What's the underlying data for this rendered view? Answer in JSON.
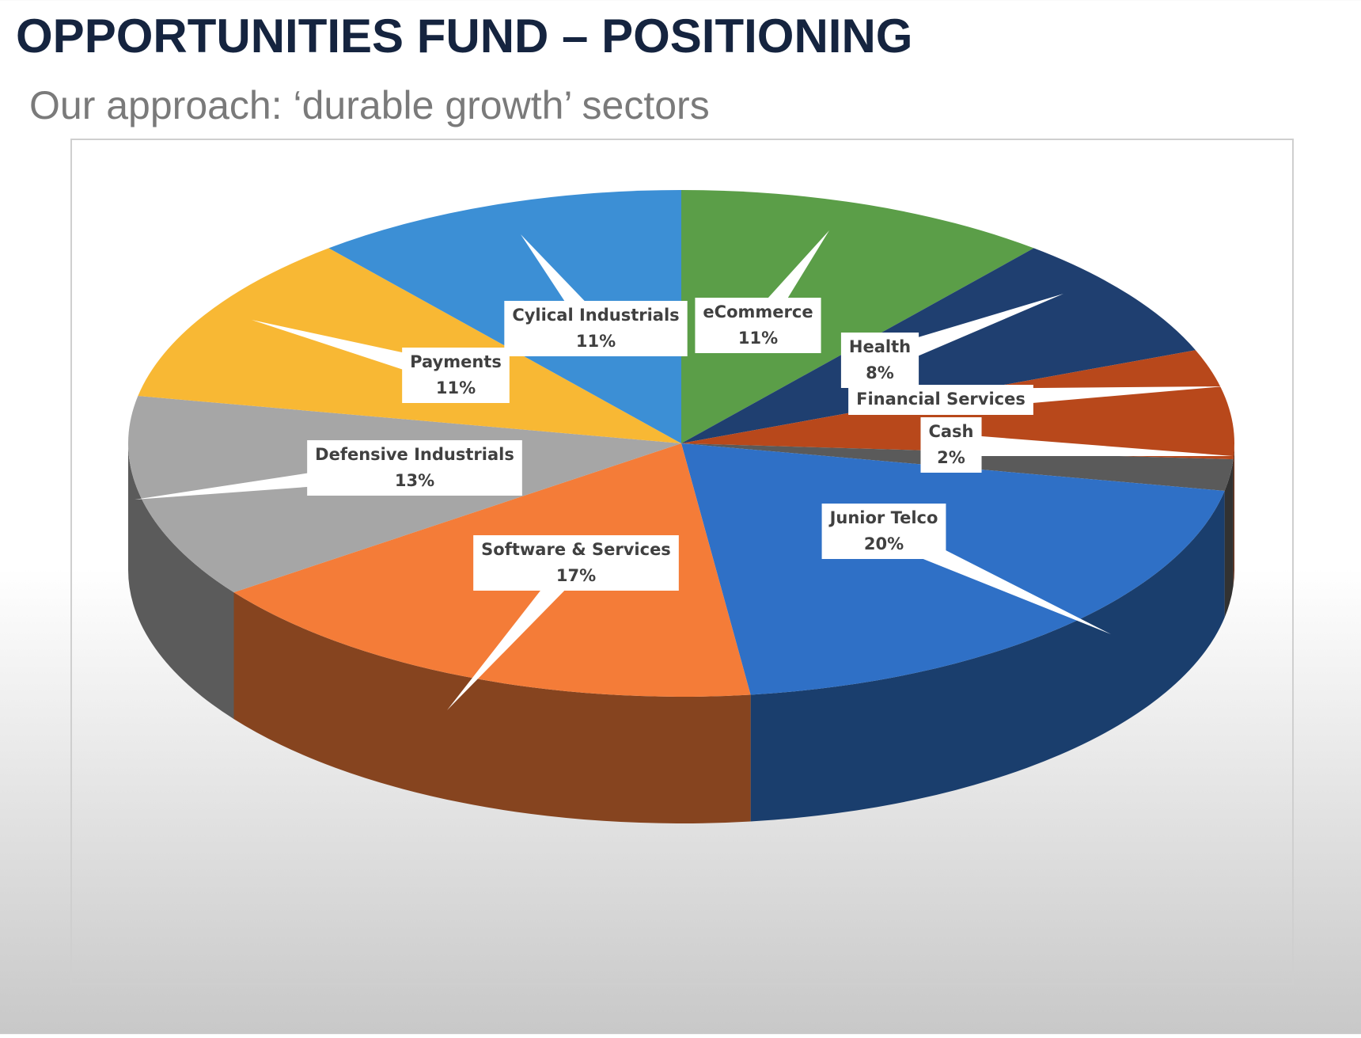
{
  "chart_data": {
    "type": "pie",
    "title": "OPPORTUNITIES FUND – POSITIONING",
    "subtitle": "Our approach: ‘durable growth’ sectors",
    "categories": [
      "eCommerce",
      "Health",
      "Financial Services",
      "Cash",
      "Junior Telco",
      "Software & Services",
      "Defensive Industrials",
      "Payments",
      "Cylical Industrials"
    ],
    "values": [
      11,
      8,
      7,
      2,
      20,
      17,
      13,
      11,
      11
    ],
    "value_labels": [
      "11%",
      "8%",
      null,
      "2%",
      "20%",
      "17%",
      "13%",
      "11%",
      "11%"
    ],
    "colors": [
      "#5b9e48",
      "#1f3f70",
      "#b8481b",
      "#5a5a5a",
      "#2f70c6",
      "#f47c38",
      "#a6a6a6",
      "#f8b834",
      "#3c8fd5"
    ]
  }
}
